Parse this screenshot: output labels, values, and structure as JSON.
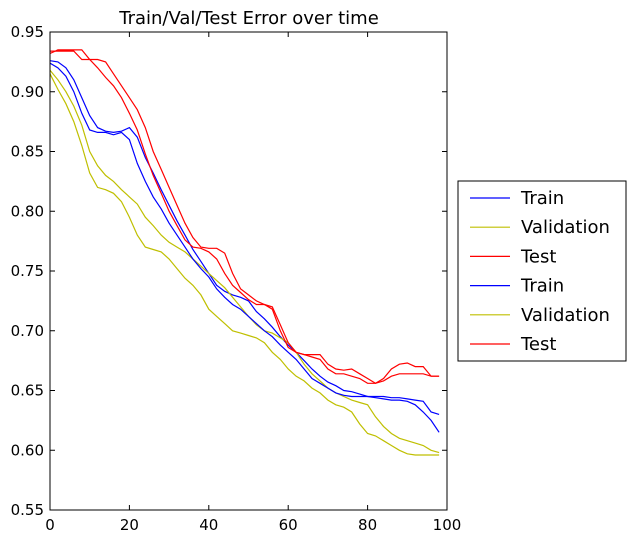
{
  "chart_data": {
    "type": "line",
    "title": "Train/Val/Test Error over time",
    "xlabel": "",
    "ylabel": "",
    "xlim": [
      0,
      100
    ],
    "ylim": [
      0.55,
      0.95
    ],
    "xticks": [
      0,
      20,
      40,
      60,
      80,
      100
    ],
    "yticks": [
      0.55,
      0.6,
      0.65,
      0.7,
      0.75,
      0.8,
      0.85,
      0.9,
      0.95
    ],
    "xtick_labels": [
      "0",
      "20",
      "40",
      "60",
      "80",
      "100"
    ],
    "ytick_labels": [
      "0.55",
      "0.60",
      "0.65",
      "0.70",
      "0.75",
      "0.80",
      "0.85",
      "0.90",
      "0.95"
    ],
    "grid": false,
    "legend_position": "outside-right",
    "colors": {
      "Train": "#0000ff",
      "Validation": "#bfbf00",
      "Test": "#ff0000"
    },
    "series": [
      {
        "name": "Train",
        "color": "#0000ff",
        "x": [
          0,
          2,
          4,
          6,
          8,
          10,
          12,
          14,
          16,
          18,
          20,
          22,
          24,
          26,
          28,
          30,
          32,
          34,
          36,
          38,
          40,
          42,
          44,
          46,
          48,
          50,
          52,
          54,
          56,
          58,
          60,
          62,
          64,
          66,
          68,
          70,
          72,
          74,
          76,
          78,
          80,
          82,
          84,
          86,
          88,
          90,
          92,
          94,
          96,
          98
        ],
        "values": [
          0.926,
          0.925,
          0.92,
          0.91,
          0.895,
          0.88,
          0.87,
          0.867,
          0.866,
          0.867,
          0.87,
          0.862,
          0.845,
          0.832,
          0.818,
          0.805,
          0.792,
          0.78,
          0.768,
          0.758,
          0.748,
          0.738,
          0.733,
          0.73,
          0.728,
          0.725,
          0.716,
          0.71,
          0.703,
          0.695,
          0.688,
          0.682,
          0.675,
          0.668,
          0.662,
          0.657,
          0.654,
          0.65,
          0.649,
          0.647,
          0.645,
          0.645,
          0.645,
          0.644,
          0.644,
          0.643,
          0.642,
          0.641,
          0.632,
          0.63
        ]
      },
      {
        "name": "Validation",
        "color": "#bfbf00",
        "x": [
          0,
          2,
          4,
          6,
          8,
          10,
          12,
          14,
          16,
          18,
          20,
          22,
          24,
          26,
          28,
          30,
          32,
          34,
          36,
          38,
          40,
          42,
          44,
          46,
          48,
          50,
          52,
          54,
          56,
          58,
          60,
          62,
          64,
          66,
          68,
          70,
          72,
          74,
          76,
          78,
          80,
          82,
          84,
          86,
          88,
          90,
          92,
          94,
          96,
          98
        ],
        "values": [
          0.918,
          0.91,
          0.9,
          0.888,
          0.872,
          0.85,
          0.838,
          0.83,
          0.825,
          0.818,
          0.812,
          0.806,
          0.795,
          0.788,
          0.78,
          0.774,
          0.77,
          0.766,
          0.76,
          0.754,
          0.748,
          0.742,
          0.736,
          0.728,
          0.72,
          0.712,
          0.705,
          0.7,
          0.698,
          0.694,
          0.69,
          0.682,
          0.672,
          0.664,
          0.658,
          0.652,
          0.648,
          0.645,
          0.642,
          0.64,
          0.638,
          0.628,
          0.62,
          0.614,
          0.61,
          0.608,
          0.606,
          0.604,
          0.6,
          0.598
        ]
      },
      {
        "name": "Test",
        "color": "#ff0000",
        "x": [
          0,
          2,
          4,
          6,
          8,
          10,
          12,
          14,
          16,
          18,
          20,
          22,
          24,
          26,
          28,
          30,
          32,
          34,
          36,
          38,
          40,
          42,
          44,
          46,
          48,
          50,
          52,
          54,
          56,
          58,
          60,
          62,
          64,
          66,
          68,
          70,
          72,
          74,
          76,
          78,
          80,
          82,
          84,
          86,
          88,
          90,
          92,
          94,
          96,
          98
        ],
        "values": [
          0.932,
          0.935,
          0.935,
          0.935,
          0.935,
          0.927,
          0.927,
          0.925,
          0.915,
          0.905,
          0.895,
          0.885,
          0.87,
          0.85,
          0.835,
          0.82,
          0.805,
          0.79,
          0.778,
          0.77,
          0.769,
          0.769,
          0.765,
          0.748,
          0.735,
          0.73,
          0.725,
          0.722,
          0.72,
          0.705,
          0.69,
          0.682,
          0.68,
          0.68,
          0.68,
          0.672,
          0.668,
          0.667,
          0.668,
          0.664,
          0.66,
          0.656,
          0.66,
          0.668,
          0.672,
          0.673,
          0.67,
          0.67,
          0.662,
          0.662
        ]
      },
      {
        "name": "Train",
        "color": "#0000ff",
        "x": [
          0,
          2,
          4,
          6,
          8,
          10,
          12,
          14,
          16,
          18,
          20,
          22,
          24,
          26,
          28,
          30,
          32,
          34,
          36,
          38,
          40,
          42,
          44,
          46,
          48,
          50,
          52,
          54,
          56,
          58,
          60,
          62,
          64,
          66,
          68,
          70,
          72,
          74,
          76,
          78,
          80,
          82,
          84,
          86,
          88,
          90,
          92,
          94,
          96,
          98
        ],
        "values": [
          0.924,
          0.92,
          0.913,
          0.9,
          0.882,
          0.868,
          0.866,
          0.866,
          0.864,
          0.866,
          0.86,
          0.84,
          0.825,
          0.812,
          0.802,
          0.79,
          0.78,
          0.77,
          0.76,
          0.752,
          0.745,
          0.735,
          0.728,
          0.722,
          0.718,
          0.712,
          0.706,
          0.7,
          0.695,
          0.688,
          0.682,
          0.676,
          0.668,
          0.66,
          0.656,
          0.652,
          0.648,
          0.646,
          0.645,
          0.645,
          0.645,
          0.644,
          0.643,
          0.642,
          0.642,
          0.641,
          0.638,
          0.632,
          0.625,
          0.615
        ]
      },
      {
        "name": "Validation",
        "color": "#bfbf00",
        "x": [
          0,
          2,
          4,
          6,
          8,
          10,
          12,
          14,
          16,
          18,
          20,
          22,
          24,
          26,
          28,
          30,
          32,
          34,
          36,
          38,
          40,
          42,
          44,
          46,
          48,
          50,
          52,
          54,
          56,
          58,
          60,
          62,
          64,
          66,
          68,
          70,
          72,
          74,
          76,
          78,
          80,
          82,
          84,
          86,
          88,
          90,
          92,
          94,
          96,
          98
        ],
        "values": [
          0.915,
          0.902,
          0.89,
          0.875,
          0.855,
          0.832,
          0.82,
          0.818,
          0.815,
          0.808,
          0.795,
          0.78,
          0.77,
          0.768,
          0.766,
          0.76,
          0.752,
          0.744,
          0.738,
          0.73,
          0.718,
          0.712,
          0.706,
          0.7,
          0.698,
          0.696,
          0.694,
          0.69,
          0.682,
          0.676,
          0.668,
          0.662,
          0.658,
          0.652,
          0.648,
          0.642,
          0.638,
          0.636,
          0.632,
          0.622,
          0.614,
          0.612,
          0.608,
          0.604,
          0.6,
          0.597,
          0.596,
          0.596,
          0.596,
          0.596
        ]
      },
      {
        "name": "Test",
        "color": "#ff0000",
        "x": [
          0,
          2,
          4,
          6,
          8,
          10,
          12,
          14,
          16,
          18,
          20,
          22,
          24,
          26,
          28,
          30,
          32,
          34,
          36,
          38,
          40,
          42,
          44,
          46,
          48,
          50,
          52,
          54,
          56,
          58,
          60,
          62,
          64,
          66,
          68,
          70,
          72,
          74,
          76,
          78,
          80,
          82,
          84,
          86,
          88,
          90,
          92,
          94,
          96,
          98
        ],
        "values": [
          0.934,
          0.934,
          0.934,
          0.934,
          0.927,
          0.927,
          0.92,
          0.912,
          0.905,
          0.895,
          0.882,
          0.868,
          0.848,
          0.83,
          0.815,
          0.8,
          0.788,
          0.776,
          0.77,
          0.769,
          0.766,
          0.76,
          0.748,
          0.738,
          0.732,
          0.726,
          0.722,
          0.722,
          0.718,
          0.7,
          0.686,
          0.682,
          0.68,
          0.678,
          0.676,
          0.668,
          0.664,
          0.664,
          0.662,
          0.66,
          0.656,
          0.656,
          0.658,
          0.662,
          0.664,
          0.664,
          0.664,
          0.664,
          0.662,
          0.662
        ]
      }
    ]
  }
}
